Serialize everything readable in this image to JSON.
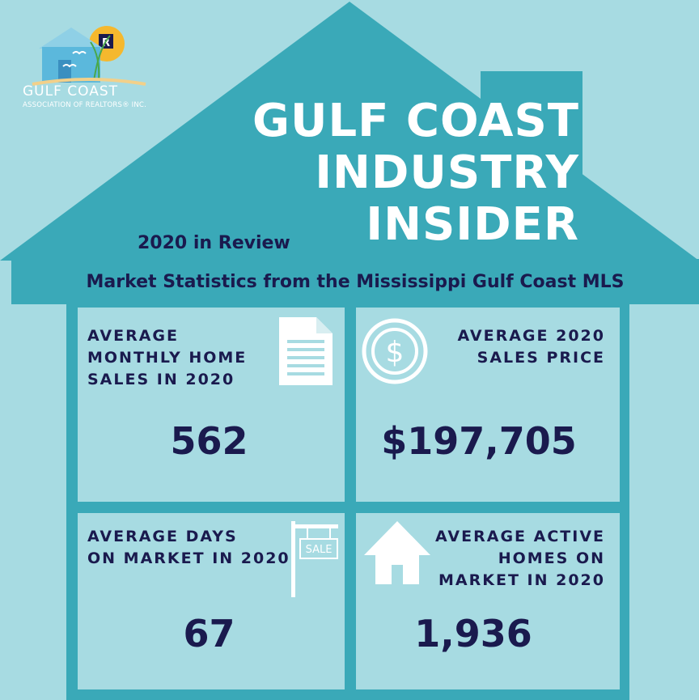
{
  "logo": {
    "name": "GULF COAST",
    "subtitle": "ASSOCIATION OF REALTORS® INC.",
    "badge": "R"
  },
  "title": {
    "line1": "GULF COAST",
    "line2": "INDUSTRY",
    "line3": "INSIDER"
  },
  "review_label": "2020 in Review",
  "band_text": "Market Statistics from the Mississippi Gulf Coast MLS",
  "stats": {
    "monthly_sales": {
      "label_lines": [
        "AVERAGE",
        "MONTHLY HOME",
        "SALES IN 2020"
      ],
      "value": "562",
      "icon": "document-icon"
    },
    "sales_price": {
      "label_lines": [
        "AVERAGE 2020",
        "SALES PRICE"
      ],
      "value": "$197,705",
      "icon": "dollar-icon"
    },
    "days_on_market": {
      "label_lines": [
        "AVERAGE DAYS",
        "ON MARKET IN 2020"
      ],
      "value": "67",
      "icon": "sale-sign-icon",
      "sign_text": "SALE"
    },
    "active_homes": {
      "label_lines": [
        "AVERAGE ACTIVE",
        "HOMES ON",
        "MARKET IN 2020"
      ],
      "value": "1,936",
      "icon": "house-icon"
    }
  },
  "colors": {
    "background": "#a7dbe2",
    "house": "#3aa9b8",
    "band": "#3aa9b8",
    "navy": "#1a1a4e",
    "white": "#ffffff",
    "sun": "#f5b82e"
  }
}
